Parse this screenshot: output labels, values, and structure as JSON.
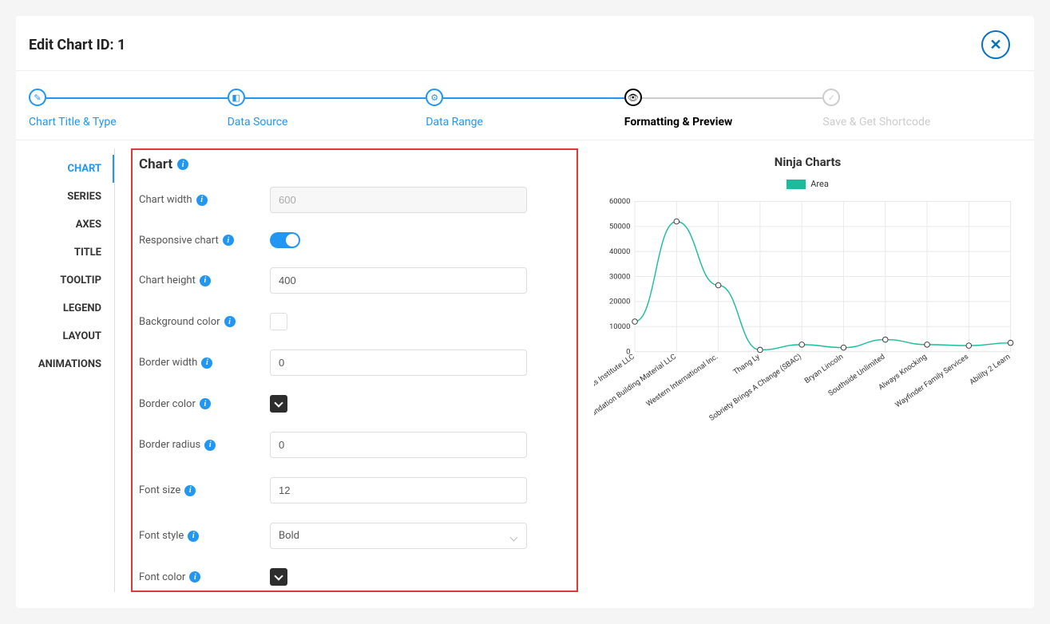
{
  "header": {
    "title": "Edit Chart ID: 1"
  },
  "stepper": [
    {
      "label": "Chart Title & Type",
      "state": "active"
    },
    {
      "label": "Data Source",
      "state": "active"
    },
    {
      "label": "Data Range",
      "state": "active"
    },
    {
      "label": "Formatting & Preview",
      "state": "current"
    },
    {
      "label": "Save & Get Shortcode",
      "state": "disabled"
    }
  ],
  "sidebar": {
    "items": [
      "CHART",
      "SERIES",
      "AXES",
      "TITLE",
      "TOOLTIP",
      "LEGEND",
      "LAYOUT",
      "ANIMATIONS"
    ],
    "active": 0
  },
  "form": {
    "section_title": "Chart",
    "rows": {
      "chart_width": {
        "label": "Chart width",
        "value": "600"
      },
      "responsive": {
        "label": "Responsive chart"
      },
      "chart_height": {
        "label": "Chart height",
        "value": "400"
      },
      "bg_color": {
        "label": "Background color"
      },
      "border_width": {
        "label": "Border width",
        "value": "0"
      },
      "border_color": {
        "label": "Border color"
      },
      "border_radius": {
        "label": "Border radius",
        "value": "0"
      },
      "font_size": {
        "label": "Font size",
        "value": "12"
      },
      "font_style": {
        "label": "Font style",
        "value": "Bold"
      },
      "font_color": {
        "label": "Font color"
      }
    }
  },
  "chart": {
    "title": "Ninja Charts",
    "legend_label": "Area",
    "legend_color": "#1abc9c",
    "line_color": "#1abc9c",
    "marker_stroke": "#333333",
    "marker_fill": "#ffffff",
    "grid_color": "#e8e8e8",
    "axis_color": "#555555",
    "ylim": [
      0,
      60000
    ],
    "ytick_step": 10000,
    "categories": [
      "The Martial and Fitness Institute LLC",
      "Foundation Building Material LLC",
      "Western International Inc.",
      "Thang Ly",
      "Sobriety Brings A Change (SBAC)",
      "Bryan Lincoln",
      "Southside Unlimited",
      "Always Knocking",
      "Wayfinder Family Services",
      "Ability 2 Learn"
    ],
    "values": [
      12000,
      52000,
      26500,
      700,
      2800,
      1600,
      4800,
      2800,
      2400,
      3500
    ]
  }
}
